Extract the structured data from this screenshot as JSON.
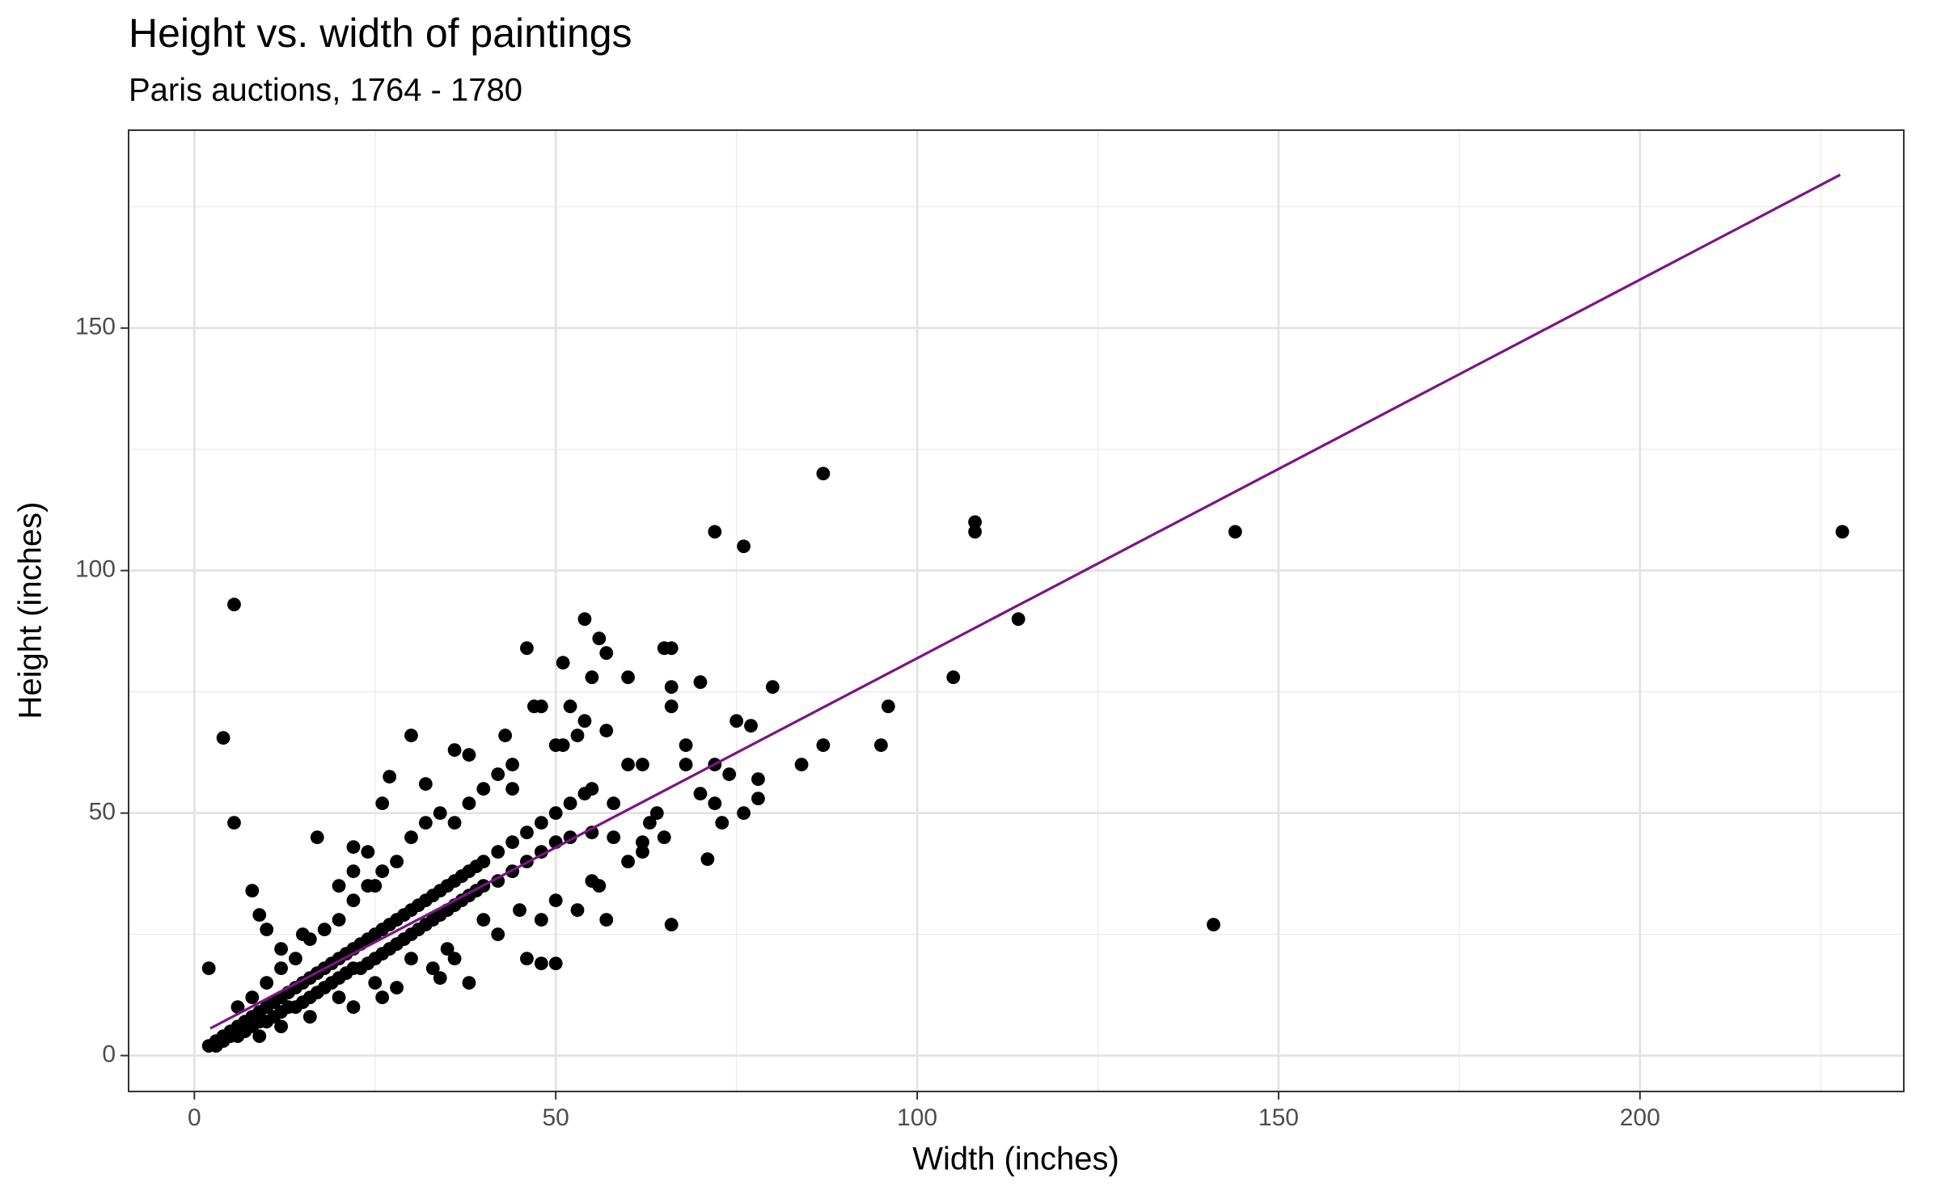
{
  "chart_data": {
    "type": "scatter",
    "title": "Height vs. width of paintings",
    "subtitle": "Paris auctions, 1764 - 1780",
    "x_label": "Width (inches)",
    "y_label": "Height (inches)",
    "xlim": [
      -9.1,
      236.5
    ],
    "ylim": [
      -7.4,
      190.8
    ],
    "xticks": [
      0,
      50,
      100,
      150,
      200
    ],
    "yticks": [
      0,
      50,
      100,
      150
    ],
    "x_minor_ticks": [
      25,
      75,
      125,
      175,
      225
    ],
    "y_minor_ticks": [
      25,
      75,
      125,
      175
    ],
    "grid": true,
    "points": {
      "color": "#000000",
      "x": [
        5.5,
        4,
        5.5,
        8,
        2,
        87,
        72,
        76,
        108,
        108,
        114,
        144,
        228,
        141,
        105,
        96,
        95,
        87,
        84,
        80,
        78,
        78,
        75,
        77,
        70,
        66,
        65,
        66,
        66,
        68,
        68,
        72,
        74,
        71,
        66,
        54,
        56,
        57,
        55,
        60,
        46,
        51,
        47,
        48,
        52,
        53,
        54,
        57,
        50,
        51,
        43,
        44,
        36,
        38,
        30,
        32,
        27,
        26,
        17,
        22,
        24,
        46,
        48,
        50,
        38,
        34,
        57,
        56,
        62,
        60,
        62,
        55,
        58,
        63,
        70,
        72,
        73,
        76,
        9,
        10,
        2,
        3,
        3,
        4,
        4,
        5,
        5,
        6,
        6,
        7,
        7,
        8,
        8,
        9,
        9,
        10,
        10,
        11,
        11,
        12,
        12,
        13,
        13,
        14,
        14,
        15,
        15,
        16,
        16,
        17,
        17,
        18,
        18,
        19,
        19,
        20,
        20,
        21,
        21,
        22,
        22,
        23,
        23,
        24,
        24,
        25,
        25,
        26,
        26,
        27,
        27,
        28,
        28,
        29,
        29,
        30,
        30,
        31,
        31,
        32,
        32,
        33,
        33,
        34,
        34,
        35,
        35,
        36,
        36,
        37,
        37,
        38,
        38,
        39,
        39,
        40,
        40,
        42,
        42,
        44,
        44,
        46,
        46,
        48,
        48,
        50,
        50,
        52,
        52,
        54,
        55,
        10,
        12,
        14,
        16,
        18,
        20,
        22,
        24,
        26,
        28,
        30,
        32,
        34,
        36,
        38,
        40,
        42,
        44,
        20,
        22,
        25,
        15,
        12,
        8,
        6,
        30,
        35,
        40,
        45,
        50,
        55,
        60,
        62,
        65,
        58,
        64,
        20,
        25,
        28,
        33,
        36,
        42,
        48,
        53,
        16,
        12,
        9,
        22,
        26
      ],
      "y": [
        93,
        65.5,
        48,
        34,
        18,
        120,
        108,
        105,
        110,
        108,
        90,
        108,
        108,
        27,
        78,
        72,
        64,
        64,
        60,
        76,
        57,
        53,
        69,
        68,
        77,
        84,
        84,
        76,
        72,
        64,
        60,
        60,
        58,
        40.5,
        27,
        90,
        86,
        83,
        78,
        78,
        84,
        81,
        72,
        72,
        72,
        66,
        69,
        67,
        64,
        64,
        66,
        60,
        63,
        62,
        66,
        56,
        57.5,
        52,
        45,
        43,
        42,
        20,
        19,
        19,
        15,
        16,
        28,
        35,
        42,
        60,
        60,
        55,
        52,
        48,
        54,
        52,
        48,
        50,
        29,
        26,
        2,
        3,
        2,
        4,
        3,
        5,
        4,
        6,
        4,
        7,
        5,
        8,
        6,
        9,
        7,
        10,
        7,
        11,
        8,
        12,
        9,
        13,
        10,
        14,
        10,
        15,
        11,
        16,
        12,
        17,
        13,
        18,
        14,
        19,
        15,
        20,
        16,
        21,
        17,
        22,
        18,
        23,
        18,
        24,
        19,
        25,
        20,
        26,
        21,
        27,
        22,
        28,
        23,
        29,
        24,
        30,
        25,
        31,
        26,
        32,
        27,
        33,
        28,
        34,
        29,
        35,
        30,
        36,
        31,
        37,
        32,
        38,
        33,
        39,
        34,
        40,
        35,
        42,
        36,
        44,
        38,
        46,
        40,
        48,
        42,
        50,
        44,
        52,
        45,
        54,
        46,
        15,
        18,
        20,
        24,
        26,
        28,
        32,
        35,
        38,
        40,
        45,
        48,
        50,
        48,
        52,
        55,
        58,
        55,
        35,
        38,
        35,
        25,
        22,
        12,
        10,
        20,
        22,
        28,
        30,
        32,
        36,
        40,
        44,
        45,
        45,
        50,
        12,
        15,
        14,
        18,
        20,
        25,
        28,
        30,
        8,
        6,
        4,
        10,
        12
      ]
    },
    "fit_line": {
      "color": "#7b1583",
      "x": [
        2.2,
        227.7
      ],
      "y": [
        5.6,
        181.6
      ]
    }
  }
}
